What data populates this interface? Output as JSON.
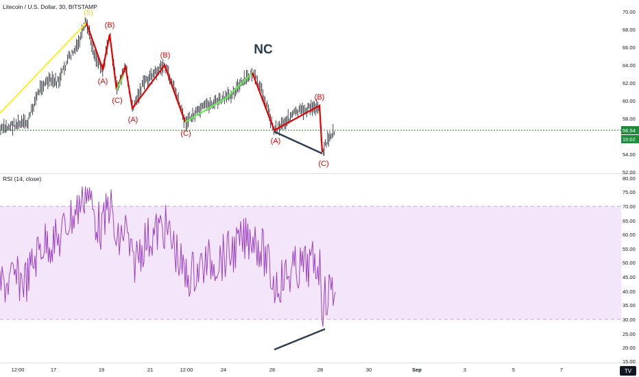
{
  "header": {
    "symbol_title": "Litecoin / U.S. Dollar, 30, BITSTAMP",
    "rsi_label": "RSI (14, close)"
  },
  "colors": {
    "candle": "#131722",
    "rsi_line": "#9c3fc2",
    "rsi_band_fill": "#f3e6fb",
    "impulse_up": "#ffee33",
    "correction_red": "#e60000",
    "correction_green": "#66ee55",
    "divergence_line": "#2a3b52",
    "price_line": "#1a7f1a",
    "price_badge": "#1e8c3c",
    "nc_text": "#2a3b52"
  },
  "price_axis": {
    "ticks": [
      "70.00",
      "68.00",
      "66.00",
      "64.00",
      "62.00",
      "60.00",
      "58.00",
      "56.00",
      "54.00",
      "52.00"
    ],
    "last_price": "56.54",
    "countdown": "15:02"
  },
  "rsi_axis": {
    "ticks": [
      "80.00",
      "75.00",
      "70.00",
      "65.00",
      "60.00",
      "55.00",
      "50.00",
      "45.00",
      "40.00",
      "35.00",
      "30.00",
      "25.00",
      "20.00",
      "15.00"
    ]
  },
  "time_axis": {
    "ticks": [
      "12:00",
      "17",
      "19",
      "21",
      "12:00",
      "24",
      "26",
      "28",
      "30",
      "Sep",
      "3",
      "5",
      "7"
    ]
  },
  "annotations": {
    "wave_5": "(5)",
    "wave_b1": "(B)",
    "wave_a1": "(A)",
    "wave_c1": "(C)",
    "wave_a2": "(A)",
    "wave_b2": "(B)",
    "wave_c2": "(C)",
    "wave_a3": "(A)",
    "wave_b3": "(B)",
    "wave_c3": "(C)",
    "nc": "NC"
  },
  "chart_data": [
    {
      "type": "candlestick",
      "title": "Litecoin / U.S. Dollar, 30, BITSTAMP",
      "ylim": [
        51.5,
        71
      ],
      "last_price": 56.54,
      "swing_points": [
        {
          "x": "Aug 15",
          "y": 57.5
        },
        {
          "x": "Aug 18",
          "y": 68.8,
          "label": "(5)"
        },
        {
          "x": "Aug 19",
          "y": 63.3,
          "label": "(A)"
        },
        {
          "x": "Aug 19",
          "y": 67.4,
          "label": "(B)"
        },
        {
          "x": "Aug 20",
          "y": 61.2,
          "label": "(C)"
        },
        {
          "x": "Aug 20",
          "y": 59.0,
          "label": "(A)"
        },
        {
          "x": "Aug 21",
          "y": 63.9,
          "label": "(B)"
        },
        {
          "x": "Aug 22",
          "y": 57.7,
          "label": "(C)"
        },
        {
          "x": "Aug 25",
          "y": 63.1
        },
        {
          "x": "Aug 26",
          "y": 56.6,
          "label": "(A)"
        },
        {
          "x": "Aug 28",
          "y": 59.4,
          "label": "(B)"
        },
        {
          "x": "Aug 28",
          "y": 54.0,
          "label": "(C)"
        }
      ]
    },
    {
      "type": "line",
      "title": "RSI (14, close)",
      "ylim": [
        12,
        82
      ],
      "overbought": 70,
      "oversold": 30,
      "divergence": [
        {
          "x": "Aug 26",
          "y": 19
        },
        {
          "x": "Aug 28",
          "y": 26.5
        }
      ]
    }
  ]
}
